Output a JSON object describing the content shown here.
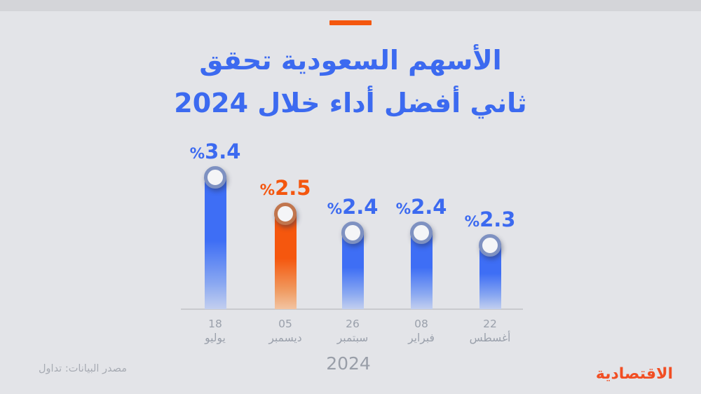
{
  "page": {
    "background_color": "#e3e4e8",
    "top_strip_color": "#d4d5d9"
  },
  "header": {
    "accent_dash_color": "#f4570e",
    "title_color": "#3c6af0",
    "title_line1": "الأسهم السعودية تحقق",
    "title_line2": "ثاني أفضل أداء خلال 2024"
  },
  "chart_data": {
    "type": "bar",
    "title": "الأسهم السعودية تحقق ثاني أفضل أداء خلال 2024",
    "xlabel": "2024",
    "ylabel": "",
    "unit": "%",
    "legend": "none",
    "grid": false,
    "categories": [
      "18 يوليو",
      "05 ديسمبر",
      "26 سبتمبر",
      "08 فبراير",
      "22 أغسطس"
    ],
    "values": [
      3.4,
      2.5,
      2.4,
      2.4,
      2.3
    ],
    "highlight_index": 1,
    "colors": {
      "bar_default": "#3e6ef5",
      "bar_highlight": "#f5570e",
      "label_default": "#3c6af0",
      "label_highlight": "#f4560e",
      "knob_ring_default": "#7e91c1",
      "knob_ring_highlight": "#c1764e",
      "axis_line": "#c9cace",
      "tick_text": "#9aa0ab"
    },
    "bars": [
      {
        "value": 3.4,
        "value_label": "3.4",
        "pct_sign": "%",
        "date_day": "18",
        "date_month": "يوليو",
        "color": "blue"
      },
      {
        "value": 2.5,
        "value_label": "2.5",
        "pct_sign": "%",
        "date_day": "05",
        "date_month": "ديسمبر",
        "color": "orange"
      },
      {
        "value": 2.4,
        "value_label": "2.4",
        "pct_sign": "%",
        "date_day": "26",
        "date_month": "سبتمبر",
        "color": "blue"
      },
      {
        "value": 2.4,
        "value_label": "2.4",
        "pct_sign": "%",
        "date_day": "08",
        "date_month": "فبراير",
        "color": "blue"
      },
      {
        "value": 2.3,
        "value_label": "2.3",
        "pct_sign": "%",
        "date_day": "22",
        "date_month": "أغسطس",
        "color": "blue"
      }
    ]
  },
  "footer": {
    "year_label": "2024",
    "source_text": "مصدر البيانات: تداول",
    "source_color": "#a7abb3",
    "logo_text": "الاقتصادية",
    "logo_color": "#f14e23"
  }
}
